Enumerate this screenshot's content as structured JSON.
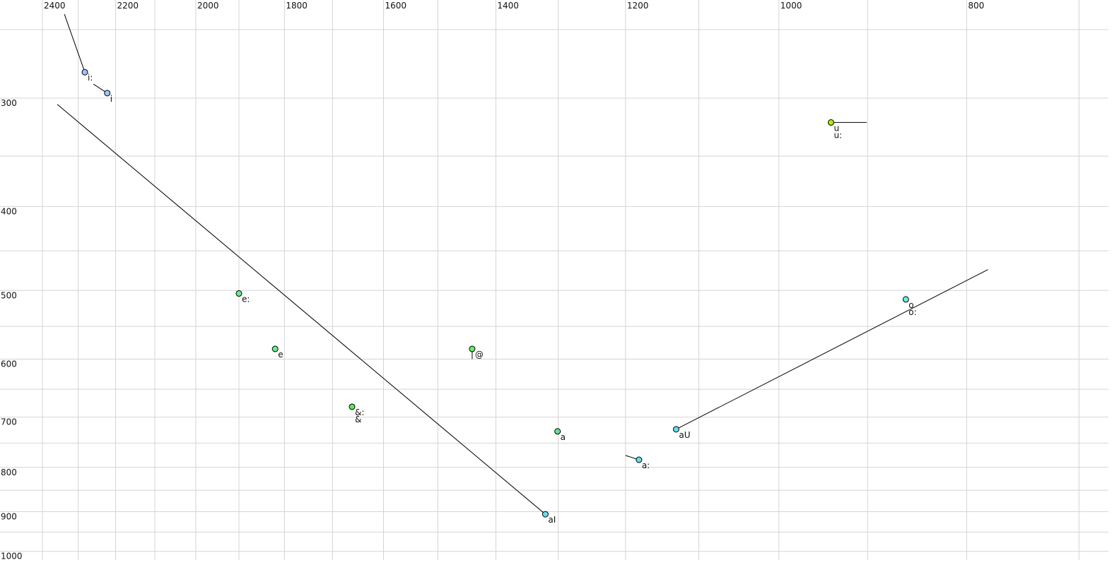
{
  "chart_data": {
    "type": "scatter",
    "title": "",
    "xlabel": "",
    "ylabel": "",
    "x_axis": {
      "quantity": "F2",
      "scale": "log",
      "reversed": true,
      "position": "top",
      "range": [
        2400,
        700
      ],
      "tick_labels": [
        2400,
        2200,
        2000,
        1800,
        1600,
        1400,
        1200,
        1000,
        800
      ],
      "gridlines": [
        2400,
        2300,
        2200,
        2100,
        2000,
        1900,
        1800,
        1700,
        1600,
        1500,
        1400,
        1300,
        1200,
        1100,
        1000,
        900,
        800,
        700
      ]
    },
    "y_axis": {
      "quantity": "F1",
      "scale": "log",
      "reversed": false,
      "position": "left",
      "range": [
        250,
        1000
      ],
      "tick_labels": [
        300,
        400,
        500,
        600,
        700,
        800,
        900,
        1000
      ],
      "gridlines": [
        250,
        300,
        350,
        400,
        450,
        500,
        550,
        600,
        650,
        700,
        750,
        800,
        850,
        900,
        950,
        1000
      ]
    },
    "grid": true,
    "grid_color": "#d4d4d4",
    "points": [
      {
        "labels": [
          "i:"
        ],
        "f2": 2282,
        "f1": 280,
        "color": "#9ec4ff",
        "track": [
          [
            2338,
            240
          ],
          [
            2282,
            280
          ]
        ]
      },
      {
        "labels": [
          "i"
        ],
        "f2": 2222,
        "f1": 296,
        "color": "#9ec4ff",
        "track": [
          [
            2259,
            289
          ],
          [
            2222,
            296
          ]
        ]
      },
      {
        "labels": [
          "u",
          "u:"
        ],
        "f2": 940,
        "f1": 320,
        "color": "#aaee11",
        "track": [
          [
            940,
            320
          ],
          [
            901,
            320
          ]
        ]
      },
      {
        "labels": [
          "e:"
        ],
        "f2": 1900,
        "f1": 504,
        "color": "#66ee88",
        "track": []
      },
      {
        "labels": [
          "e"
        ],
        "f2": 1820,
        "f1": 584,
        "color": "#66ee88",
        "track": []
      },
      {
        "labels": [
          "@"
        ],
        "f2": 1440,
        "f1": 584,
        "color": "#66ee66",
        "track": [
          [
            1440,
            584
          ],
          [
            1440,
            600
          ]
        ]
      },
      {
        "labels": [
          "&:",
          "&"
        ],
        "f2": 1661,
        "f1": 681,
        "color": "#55ee55",
        "track": []
      },
      {
        "labels": [
          "a"
        ],
        "f2": 1301,
        "f1": 727,
        "color": "#66dd99",
        "track": [
          [
            1301,
            722
          ],
          [
            1301,
            732
          ]
        ]
      },
      {
        "labels": [
          "aI"
        ],
        "f2": 1320,
        "f1": 906,
        "color": "#66ddee",
        "track": [
          [
            2358,
            305
          ],
          [
            1320,
            906
          ]
        ]
      },
      {
        "labels": [
          "a:"
        ],
        "f2": 1181,
        "f1": 784,
        "color": "#66ddee",
        "track": [
          [
            1200,
            775
          ],
          [
            1181,
            784
          ]
        ]
      },
      {
        "labels": [
          "aU"
        ],
        "f2": 1130,
        "f1": 723,
        "color": "#66ddee",
        "track": [
          [
            1130,
            723
          ],
          [
            780,
            473
          ]
        ]
      },
      {
        "labels": [
          "o",
          "o:"
        ],
        "f2": 860,
        "f1": 512,
        "color": "#66eedd",
        "track": []
      }
    ]
  }
}
